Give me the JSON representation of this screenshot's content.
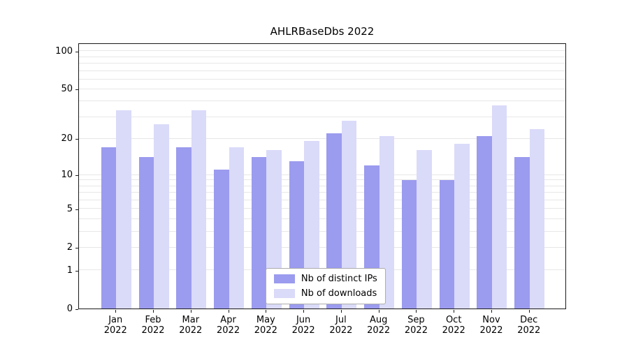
{
  "chart_data": {
    "type": "bar",
    "title": "AHLRBaseDbs 2022",
    "x_year": "2022",
    "categories": [
      "Jan",
      "Feb",
      "Mar",
      "Apr",
      "May",
      "Jun",
      "Jul",
      "Aug",
      "Sep",
      "Oct",
      "Nov",
      "Dec"
    ],
    "series": [
      {
        "name": "Nb of distinct IPs",
        "color": "#9b9bef",
        "values": [
          17,
          14,
          17,
          11,
          14,
          13,
          22,
          12,
          9,
          9,
          21,
          14
        ]
      },
      {
        "name": "Nb of downloads",
        "color": "#dadaf9",
        "values": [
          34,
          26,
          34,
          17,
          16,
          19,
          28,
          21,
          16,
          18,
          37,
          24
        ]
      }
    ],
    "yscale": "log1p",
    "yticks": [
      0,
      1,
      2,
      5,
      10,
      20,
      50,
      100
    ],
    "ylim": [
      0,
      116
    ],
    "grid": true,
    "legend_position": "lower center",
    "colors": {
      "axis": "#1a1a1a",
      "gridline": "#e7e7e7",
      "legend_border": "#adadad"
    }
  }
}
